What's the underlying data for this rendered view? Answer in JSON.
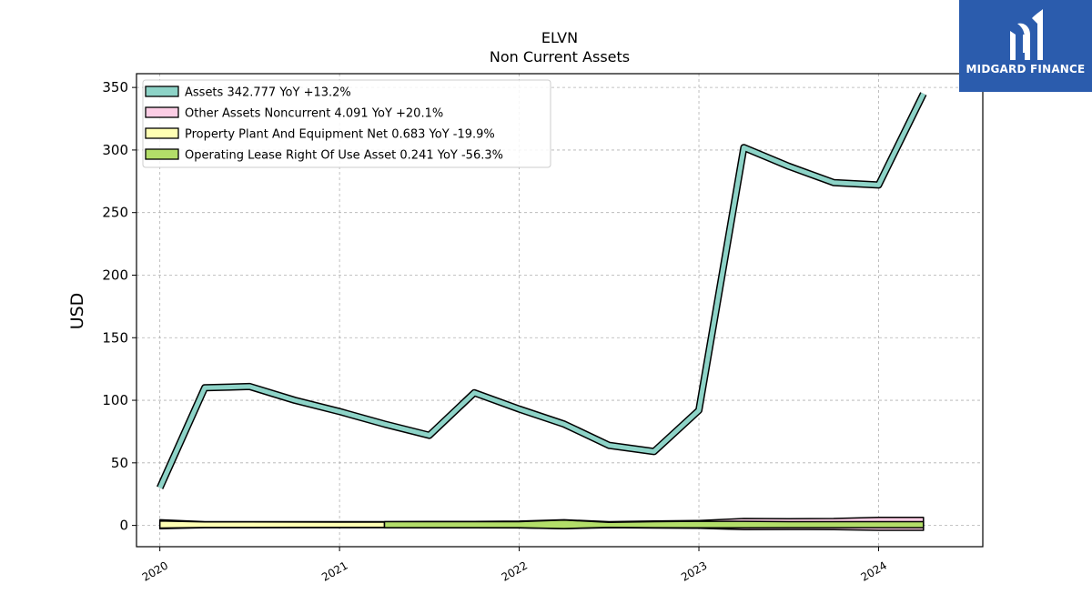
{
  "chart_data": {
    "type": "line",
    "title": "ELVN",
    "subtitle": "Non Current  Assets",
    "ylabel": "USD",
    "xlabel": "",
    "xlim": [
      2019.87,
      2024.58
    ],
    "ylim": [
      -17,
      361
    ],
    "yticks": [
      0,
      50,
      100,
      150,
      200,
      250,
      300,
      350
    ],
    "xticks": [
      "2020",
      "2021",
      "2022",
      "2023",
      "2024"
    ],
    "grid": true,
    "legend_position": "top-left",
    "series": [
      {
        "name": "Assets",
        "legend": "Assets  342.777 YoY +13.2%",
        "color": "#8dd3c7",
        "style": "line",
        "x": [
          2020.0,
          2020.25,
          2020.5,
          2020.75,
          2021.0,
          2021.25,
          2021.5,
          2021.75,
          2022.0,
          2022.25,
          2022.5,
          2022.75,
          2023.0,
          2023.25,
          2023.5,
          2023.75,
          2024.0,
          2024.25
        ],
        "y": [
          30,
          110,
          111,
          100,
          91,
          81,
          72,
          106,
          93,
          81,
          64,
          59,
          92,
          302,
          287,
          274,
          272,
          345
        ]
      },
      {
        "name": "Other Assets Noncurrent",
        "legend": "Other Assets Noncurrent  4.091 YoY +20.1%",
        "color": "#fccde5",
        "style": "area",
        "x": [
          2020.0,
          2020.25,
          2020.5,
          2020.75,
          2021.0,
          2021.25,
          2021.5,
          2021.75,
          2022.0,
          2022.25,
          2022.5,
          2022.75,
          2023.0,
          2023.25,
          2023.5,
          2023.75,
          2024.0,
          2024.25
        ],
        "y": [
          4.5,
          3.0,
          3.0,
          3.0,
          3.0,
          3.0,
          3.2,
          3.2,
          3.4,
          4.5,
          3.0,
          3.5,
          3.9,
          5.5,
          5.4,
          5.5,
          6.5,
          6.5
        ]
      },
      {
        "name": "Property Plant And Equipment Net",
        "legend": "Property Plant And Equipment Net  0.683 YoY -19.9%",
        "color": "#ffffb3",
        "style": "area",
        "x": [
          2020.0,
          2020.25,
          2020.5,
          2020.75,
          2021.0,
          2021.25
        ],
        "y": [
          3.5,
          2.8,
          2.8,
          2.7,
          2.6,
          2.6
        ]
      },
      {
        "name": "Operating Lease Right Of Use Asset",
        "legend": "Operating Lease Right Of Use Asset  0.241 YoY -56.3%",
        "color": "#b3de69",
        "style": "area",
        "x": [
          2021.25,
          2021.5,
          2021.75,
          2022.0,
          2022.25,
          2022.5,
          2022.75,
          2023.0,
          2023.25,
          2023.5,
          2023.75,
          2024.0,
          2024.25
        ],
        "y": [
          3.0,
          3.0,
          3.0,
          3.0,
          4.2,
          2.5,
          3.0,
          3.3,
          3.3,
          3.0,
          3.0,
          3.0,
          3.0
        ]
      }
    ]
  },
  "logo": {
    "text": "MIDGARD FINANCE",
    "bg_color": "#2b5cad"
  }
}
